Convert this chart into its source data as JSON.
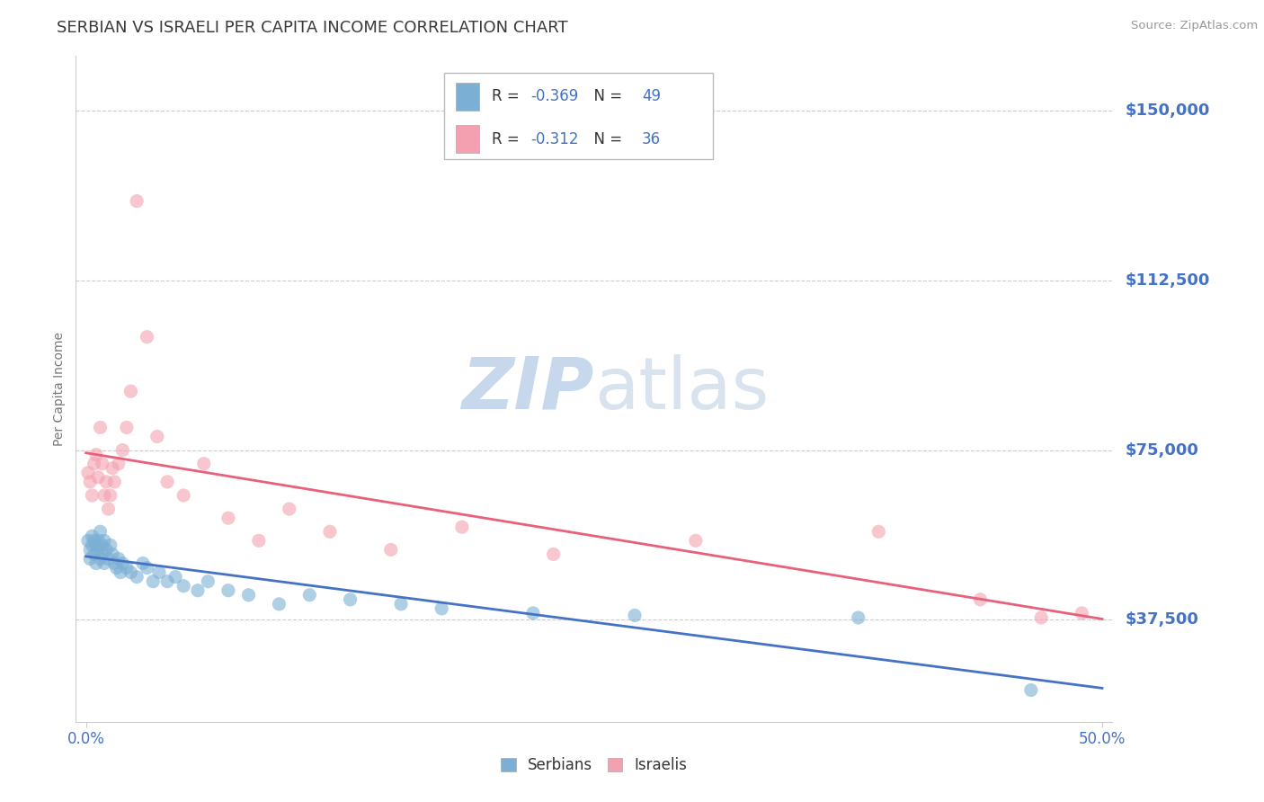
{
  "title": "SERBIAN VS ISRAELI PER CAPITA INCOME CORRELATION CHART",
  "source": "Source: ZipAtlas.com",
  "ylabel": "Per Capita Income",
  "ytick_labels": [
    "$37,500",
    "$75,000",
    "$112,500",
    "$150,000"
  ],
  "ytick_values": [
    37500,
    75000,
    112500,
    150000
  ],
  "ymin": 15000,
  "ymax": 162000,
  "xmin": -0.005,
  "xmax": 0.505,
  "title_color": "#3a3a3a",
  "title_fontsize": 13,
  "source_color": "#999999",
  "axis_label_color": "#4472c4",
  "serbians_R": -0.369,
  "serbians_N": 49,
  "israelis_R": -0.312,
  "israelis_N": 36,
  "serbian_color": "#7bafd4",
  "israeli_color": "#f4a0b0",
  "serbian_line_color": "#4472c4",
  "israeli_line_color": "#e8607a",
  "grid_color": "#cccccc",
  "background_color": "#ffffff",
  "serbians_x": [
    0.001,
    0.002,
    0.002,
    0.003,
    0.003,
    0.004,
    0.004,
    0.005,
    0.005,
    0.006,
    0.006,
    0.007,
    0.007,
    0.008,
    0.008,
    0.009,
    0.009,
    0.01,
    0.011,
    0.012,
    0.013,
    0.014,
    0.015,
    0.016,
    0.017,
    0.018,
    0.02,
    0.022,
    0.025,
    0.028,
    0.03,
    0.033,
    0.036,
    0.04,
    0.044,
    0.048,
    0.055,
    0.06,
    0.07,
    0.08,
    0.095,
    0.11,
    0.13,
    0.155,
    0.175,
    0.22,
    0.27,
    0.38,
    0.465
  ],
  "serbians_y": [
    55000,
    53000,
    51000,
    56000,
    54000,
    55000,
    52000,
    54000,
    50000,
    55000,
    53000,
    57000,
    51000,
    54000,
    52000,
    55000,
    50000,
    53000,
    51000,
    54000,
    52000,
    50000,
    49000,
    51000,
    48000,
    50000,
    49000,
    48000,
    47000,
    50000,
    49000,
    46000,
    48000,
    46000,
    47000,
    45000,
    44000,
    46000,
    44000,
    43000,
    41000,
    43000,
    42000,
    41000,
    40000,
    39000,
    38500,
    38000,
    22000
  ],
  "israelis_x": [
    0.001,
    0.002,
    0.003,
    0.004,
    0.005,
    0.006,
    0.007,
    0.008,
    0.009,
    0.01,
    0.011,
    0.012,
    0.013,
    0.014,
    0.016,
    0.018,
    0.02,
    0.022,
    0.025,
    0.03,
    0.035,
    0.04,
    0.048,
    0.058,
    0.07,
    0.085,
    0.1,
    0.12,
    0.15,
    0.185,
    0.23,
    0.3,
    0.39,
    0.44,
    0.47,
    0.49
  ],
  "israelis_y": [
    70000,
    68000,
    65000,
    72000,
    74000,
    69000,
    80000,
    72000,
    65000,
    68000,
    62000,
    65000,
    71000,
    68000,
    72000,
    75000,
    80000,
    88000,
    130000,
    100000,
    78000,
    68000,
    65000,
    72000,
    60000,
    55000,
    62000,
    57000,
    53000,
    58000,
    52000,
    55000,
    57000,
    42000,
    38000,
    39000
  ]
}
